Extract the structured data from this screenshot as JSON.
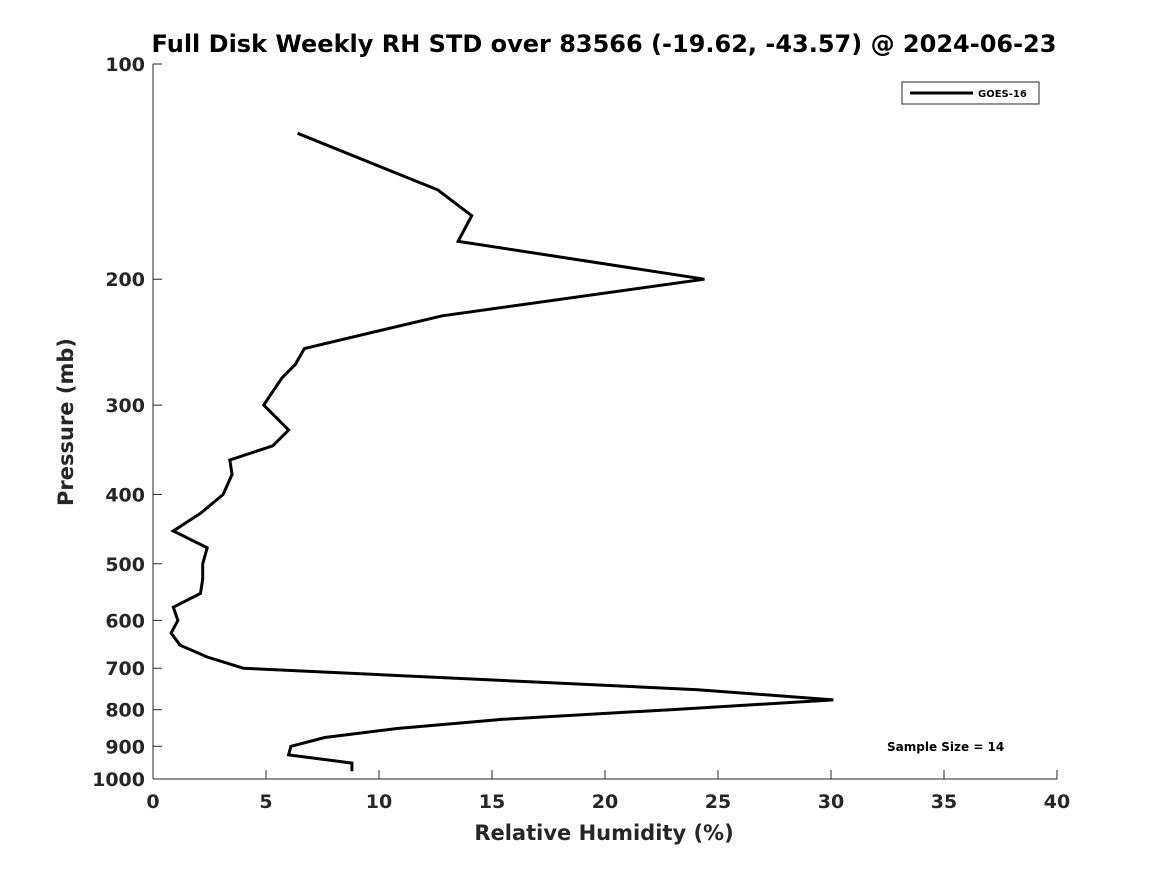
{
  "chart_data": {
    "type": "line",
    "title": "Full Disk Weekly RH STD over 83566 (-19.62, -43.57) @ 2024-06-23",
    "xlabel": "Relative Humidity (%)",
    "ylabel": "Pressure (mb)",
    "xlim": [
      0,
      40
    ],
    "ylim": [
      100,
      1000
    ],
    "y_scale": "log",
    "y_reversed": true,
    "grid": false,
    "legend_placement": "top-right",
    "x_ticks": [
      "0",
      "5",
      "10",
      "15",
      "20",
      "25",
      "30",
      "35",
      "40"
    ],
    "y_ticks": [
      "100",
      "200",
      "300",
      "400",
      "500",
      "600",
      "700",
      "800",
      "900",
      "1000"
    ],
    "series": [
      {
        "name": "GOES-16",
        "color": "#000000",
        "points": [
          {
            "x": 6.4,
            "y": 125
          },
          {
            "x": 12.6,
            "y": 150
          },
          {
            "x": 14.1,
            "y": 163
          },
          {
            "x": 13.5,
            "y": 177
          },
          {
            "x": 24.4,
            "y": 200
          },
          {
            "x": 12.8,
            "y": 225
          },
          {
            "x": 6.7,
            "y": 250
          },
          {
            "x": 6.3,
            "y": 263
          },
          {
            "x": 5.7,
            "y": 275
          },
          {
            "x": 4.9,
            "y": 300
          },
          {
            "x": 6.0,
            "y": 325
          },
          {
            "x": 5.3,
            "y": 342
          },
          {
            "x": 3.4,
            "y": 358
          },
          {
            "x": 3.5,
            "y": 375
          },
          {
            "x": 3.1,
            "y": 400
          },
          {
            "x": 2.1,
            "y": 425
          },
          {
            "x": 0.9,
            "y": 450
          },
          {
            "x": 2.4,
            "y": 475
          },
          {
            "x": 2.2,
            "y": 500
          },
          {
            "x": 2.2,
            "y": 525
          },
          {
            "x": 2.1,
            "y": 550
          },
          {
            "x": 0.9,
            "y": 575
          },
          {
            "x": 1.1,
            "y": 600
          },
          {
            "x": 0.8,
            "y": 625
          },
          {
            "x": 1.2,
            "y": 650
          },
          {
            "x": 2.4,
            "y": 675
          },
          {
            "x": 4.0,
            "y": 700
          },
          {
            "x": 24.1,
            "y": 750
          },
          {
            "x": 30.1,
            "y": 775
          },
          {
            "x": 22.9,
            "y": 800
          },
          {
            "x": 15.5,
            "y": 825
          },
          {
            "x": 10.8,
            "y": 850
          },
          {
            "x": 7.6,
            "y": 875
          },
          {
            "x": 6.1,
            "y": 900
          },
          {
            "x": 6.0,
            "y": 925
          },
          {
            "x": 8.8,
            "y": 950
          },
          {
            "x": 8.8,
            "y": 975
          }
        ]
      }
    ],
    "legend": [
      {
        "label": "GOES-16"
      }
    ],
    "annotation": "Sample Size = 14"
  }
}
